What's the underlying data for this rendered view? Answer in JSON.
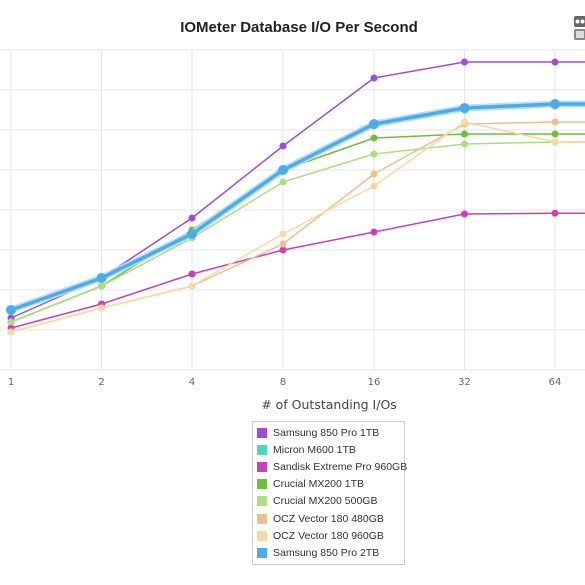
{
  "chart_data": {
    "type": "line",
    "title": "IOMeter Database I/O Per Second",
    "xlabel": "# of Outstanding I/Os",
    "ylabel": "",
    "categories": [
      "1",
      "2",
      "4",
      "8",
      "16",
      "32",
      "64"
    ],
    "ylim": [
      0,
      8
    ],
    "grid": true,
    "legend_position": "bottom",
    "series": [
      {
        "name": "Samsung 850 Pro 1TB",
        "color": "#9b4de0",
        "values": [
          1.3,
          2.3,
          3.8,
          5.6,
          7.3,
          7.7,
          7.7
        ]
      },
      {
        "name": "Micron M600 1TB",
        "color": "#4fd6c0",
        "values": [
          1.5,
          2.3,
          3.4,
          5.0,
          6.1,
          6.5,
          6.6
        ]
      },
      {
        "name": "Sandisk Extreme Pro 960GB",
        "color": "#cc3fb5",
        "values": [
          1.05,
          1.65,
          2.4,
          3.0,
          3.45,
          3.9,
          3.92
        ]
      },
      {
        "name": "Crucial MX200 1TB",
        "color": "#6dbf3a",
        "values": [
          1.2,
          2.1,
          3.5,
          5.0,
          5.8,
          5.9,
          5.9
        ]
      },
      {
        "name": "Crucial MX200 500GB",
        "color": "#a8e07f",
        "values": [
          1.2,
          2.1,
          3.3,
          4.7,
          5.4,
          5.65,
          5.7
        ]
      },
      {
        "name": "OCZ Vector 180 480GB",
        "color": "#eec08e",
        "values": [
          0.95,
          1.55,
          2.1,
          3.15,
          4.9,
          6.15,
          6.2
        ]
      },
      {
        "name": "OCZ Vector 180 960GB",
        "color": "#fad7a4",
        "values": [
          0.95,
          1.55,
          2.1,
          3.4,
          4.6,
          6.2,
          5.7
        ]
      },
      {
        "name": "Samsung 850 Pro 2TB",
        "color": "#4aade8",
        "values": [
          1.5,
          2.3,
          3.4,
          5.0,
          6.15,
          6.55,
          6.65
        ]
      }
    ]
  }
}
